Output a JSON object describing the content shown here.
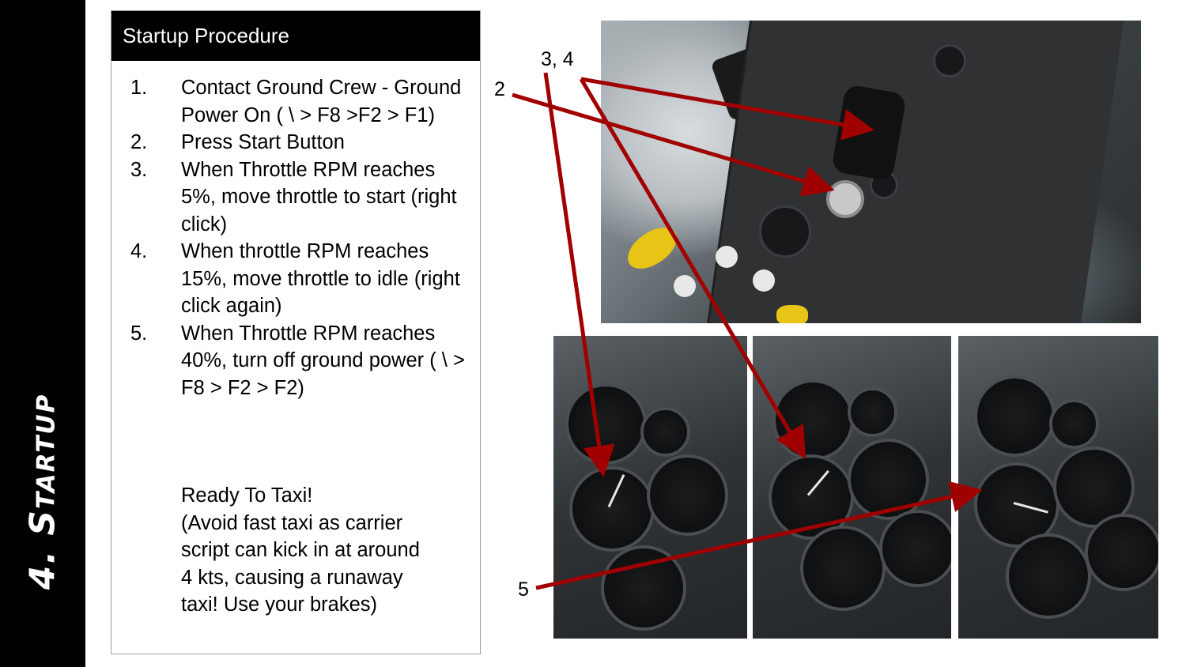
{
  "sidebar": {
    "title": "4. Startup"
  },
  "panel": {
    "header": "Startup Procedure",
    "steps": [
      {
        "num": "1.",
        "text": "Contact Ground Crew - Ground Power On ( \\ > F8 >F2 > F1)"
      },
      {
        "num": "2.",
        "text": "Press Start Button"
      },
      {
        "num": "3.",
        "text": "When Throttle RPM reaches 5%, move throttle to start (right click)"
      },
      {
        "num": "4.",
        "text": "When throttle RPM reaches 15%, move throttle to idle (right click again)"
      },
      {
        "num": "5.",
        "text": "When Throttle RPM reaches 40%, turn off ground power ( \\ > F8 > F2 > F2)"
      }
    ],
    "note_lines": [
      "Ready To Taxi!",
      "(Avoid fast taxi as carrier",
      "script can kick in at around",
      "4 kts, causing a runaway",
      "taxi! Use your brakes)"
    ]
  },
  "callouts": {
    "c2": "2",
    "c34": "3, 4",
    "c5": "5"
  },
  "colors": {
    "arrow": "#a10000",
    "sidebar": "#000000",
    "header": "#000000"
  }
}
